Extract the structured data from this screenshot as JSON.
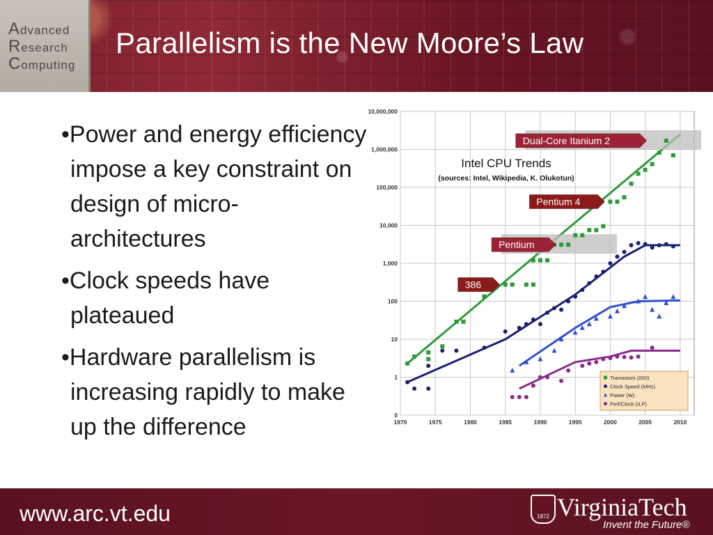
{
  "header": {
    "logo_lines": [
      {
        "cap": "A",
        "rest": "dvanced"
      },
      {
        "cap": "R",
        "rest": "esearch"
      },
      {
        "cap": "C",
        "rest": "omputing"
      }
    ],
    "title": "Parallelism is the New Moore’s Law"
  },
  "bullets": [
    "•Power and energy efficiency impose a key constraint on design of micro-architectures",
    "•Clock speeds have plateaued",
    "•Hardware parallelism is increasing rapidly to make up the difference"
  ],
  "footer": {
    "url": "www.arc.vt.edu",
    "brand": "VirginiaTech",
    "tagline": "Invent the Future®",
    "seal_year": "1872"
  },
  "chart_data": {
    "type": "scatter",
    "title": "Intel CPU Trends",
    "subtitle": "(sources: Intel, Wikipedia, K. Olukotun)",
    "y_scale": "log",
    "ylim": [
      0.1,
      10000000
    ],
    "xlim": [
      1970,
      2012
    ],
    "x_ticks": [
      1970,
      1975,
      1980,
      1985,
      1990,
      1995,
      2000,
      2005,
      2010
    ],
    "y_ticks": [
      {
        "v": 0.1,
        "label": "0"
      },
      {
        "v": 1,
        "label": "1"
      },
      {
        "v": 10,
        "label": "10"
      },
      {
        "v": 100,
        "label": "100"
      },
      {
        "v": 1000,
        "label": "1,000"
      },
      {
        "v": 10000,
        "label": "10,000"
      },
      {
        "v": 100000,
        "label": "100,000"
      },
      {
        "v": 1000000,
        "label": "1,000,000"
      },
      {
        "v": 10000000,
        "label": "10,000,000"
      }
    ],
    "grid": true,
    "legend_position": "bottom-right",
    "series": [
      {
        "name": "Transistors (000)",
        "color": "#2e9a3a",
        "marker": "square",
        "trend": [
          [
            1971,
            2.3
          ],
          [
            2010,
            2500000
          ]
        ],
        "points": [
          [
            1971,
            2.3
          ],
          [
            1972,
            3.5
          ],
          [
            1974,
            4.5
          ],
          [
            1974,
            3
          ],
          [
            1976,
            6.5
          ],
          [
            1978,
            29
          ],
          [
            1979,
            29
          ],
          [
            1982,
            134
          ],
          [
            1985,
            275
          ],
          [
            1986,
            275
          ],
          [
            1988,
            275
          ],
          [
            1989,
            275
          ],
          [
            1989,
            1200
          ],
          [
            1990,
            1200
          ],
          [
            1991,
            1200
          ],
          [
            1992,
            3100
          ],
          [
            1993,
            3100
          ],
          [
            1994,
            3100
          ],
          [
            1995,
            5500
          ],
          [
            1996,
            5500
          ],
          [
            1997,
            7500
          ],
          [
            1998,
            7500
          ],
          [
            1999,
            9500
          ],
          [
            2000,
            42000
          ],
          [
            2001,
            42000
          ],
          [
            2002,
            55000
          ],
          [
            2003,
            125000
          ],
          [
            2004,
            230000
          ],
          [
            2005,
            290000
          ],
          [
            2006,
            410000
          ],
          [
            2007,
            820000
          ],
          [
            2008,
            1700000
          ],
          [
            2009,
            700000
          ]
        ]
      },
      {
        "name": "Clock Speed (MHz)",
        "color": "#1a1f72",
        "marker": "circle",
        "trend": [
          [
            1971,
            0.74
          ],
          [
            1985,
            10
          ],
          [
            1995,
            150
          ],
          [
            2002,
            1500
          ],
          [
            2005,
            3000
          ],
          [
            2010,
            3000
          ]
        ],
        "points": [
          [
            1971,
            0.74
          ],
          [
            1972,
            0.5
          ],
          [
            1974,
            2
          ],
          [
            1974,
            0.5
          ],
          [
            1976,
            5
          ],
          [
            1978,
            5
          ],
          [
            1982,
            6
          ],
          [
            1985,
            16
          ],
          [
            1987,
            20
          ],
          [
            1988,
            25
          ],
          [
            1989,
            33
          ],
          [
            1990,
            25
          ],
          [
            1991,
            50
          ],
          [
            1992,
            66
          ],
          [
            1993,
            60
          ],
          [
            1994,
            100
          ],
          [
            1995,
            133
          ],
          [
            1996,
            200
          ],
          [
            1997,
            300
          ],
          [
            1998,
            450
          ],
          [
            1999,
            600
          ],
          [
            2000,
            1000
          ],
          [
            2001,
            1500
          ],
          [
            2002,
            2000
          ],
          [
            2003,
            3000
          ],
          [
            2004,
            3400
          ],
          [
            2005,
            3200
          ],
          [
            2006,
            2600
          ],
          [
            2007,
            3000
          ],
          [
            2008,
            3200
          ],
          [
            2009,
            2800
          ]
        ]
      },
      {
        "name": "Power (W)",
        "color": "#2f4fd0",
        "marker": "triangle",
        "trend": [
          [
            1987,
            2
          ],
          [
            1995,
            20
          ],
          [
            2000,
            70
          ],
          [
            2004,
            100
          ],
          [
            2010,
            105
          ]
        ],
        "points": [
          [
            1986,
            1.5
          ],
          [
            1988,
            2.5
          ],
          [
            1990,
            3
          ],
          [
            1992,
            5
          ],
          [
            1993,
            10
          ],
          [
            1995,
            15
          ],
          [
            1996,
            20
          ],
          [
            1997,
            25
          ],
          [
            1998,
            35
          ],
          [
            2000,
            40
          ],
          [
            2001,
            55
          ],
          [
            2002,
            75
          ],
          [
            2004,
            100
          ],
          [
            2005,
            130
          ],
          [
            2006,
            60
          ],
          [
            2007,
            40
          ],
          [
            2008,
            90
          ],
          [
            2009,
            130
          ]
        ]
      },
      {
        "name": "Perf/Clock (ILP)",
        "color": "#8b2a8a",
        "marker": "circle",
        "trend": [
          [
            1987,
            0.5
          ],
          [
            1995,
            2.5
          ],
          [
            2000,
            3.5
          ],
          [
            2003,
            5
          ],
          [
            2010,
            5
          ]
        ],
        "points": [
          [
            1986,
            0.3
          ],
          [
            1987,
            0.3
          ],
          [
            1988,
            0.3
          ],
          [
            1989,
            0.6
          ],
          [
            1990,
            1
          ],
          [
            1991,
            1
          ],
          [
            1993,
            0.8
          ],
          [
            1994,
            1.5
          ],
          [
            1996,
            2
          ],
          [
            1997,
            2.3
          ],
          [
            1998,
            2.5
          ],
          [
            1999,
            3
          ],
          [
            2000,
            3.2
          ],
          [
            2001,
            3.5
          ],
          [
            2002,
            3.4
          ],
          [
            2003,
            3.3
          ],
          [
            2004,
            3.5
          ],
          [
            2006,
            6
          ]
        ]
      }
    ],
    "annotations": [
      {
        "label": "386",
        "x": 1985,
        "y": 275,
        "fill": "#8b1a1a",
        "bar": false
      },
      {
        "label": "Pentium",
        "x": 1993,
        "y": 3100,
        "fill": "#9b2335",
        "bar": true
      },
      {
        "label": "Pentium 4",
        "x": 2000,
        "y": 42000,
        "fill": "#8b1a1a",
        "bar": false
      },
      {
        "label": "Dual-Core Itanium 2",
        "x": 2006,
        "y": 1700000,
        "fill": "#9b2335",
        "bar": true
      }
    ]
  }
}
